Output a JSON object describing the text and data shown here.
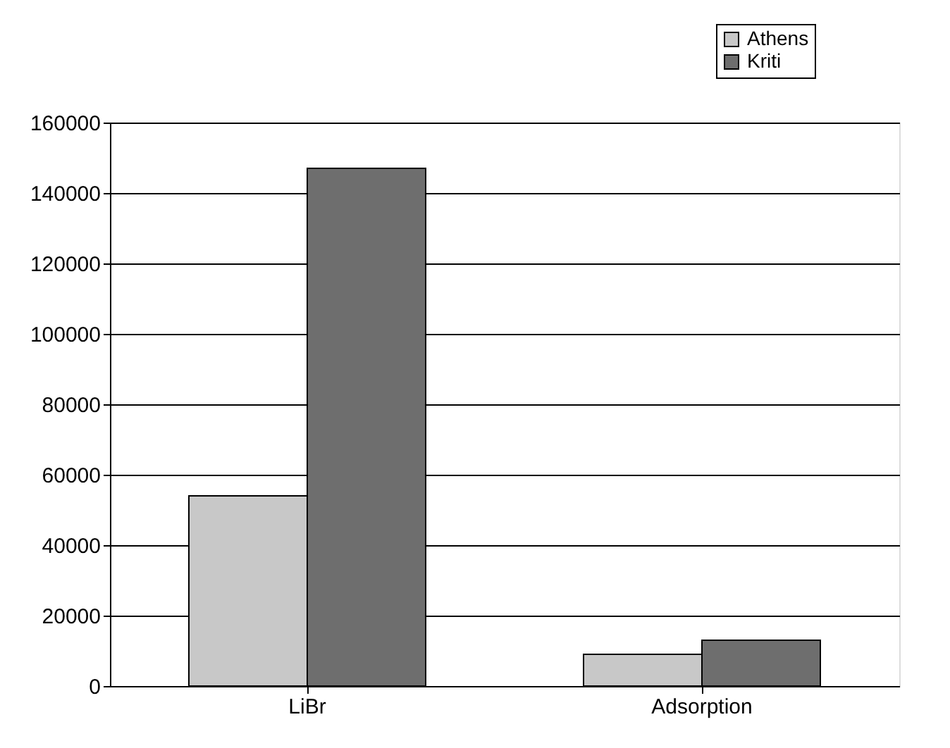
{
  "chart_data": {
    "type": "bar",
    "categories": [
      "LiBr",
      "Adsorption"
    ],
    "series": [
      {
        "name": "Athens",
        "color": "#c8c8c8",
        "values": [
          54000,
          9000
        ]
      },
      {
        "name": "Kriti",
        "color": "#6e6e6e",
        "values": [
          147000,
          13000
        ]
      }
    ],
    "ylim": [
      0,
      160000
    ],
    "yticks": [
      0,
      20000,
      40000,
      60000,
      80000,
      100000,
      120000,
      140000,
      160000
    ],
    "grid": "y",
    "legend": "top right"
  }
}
